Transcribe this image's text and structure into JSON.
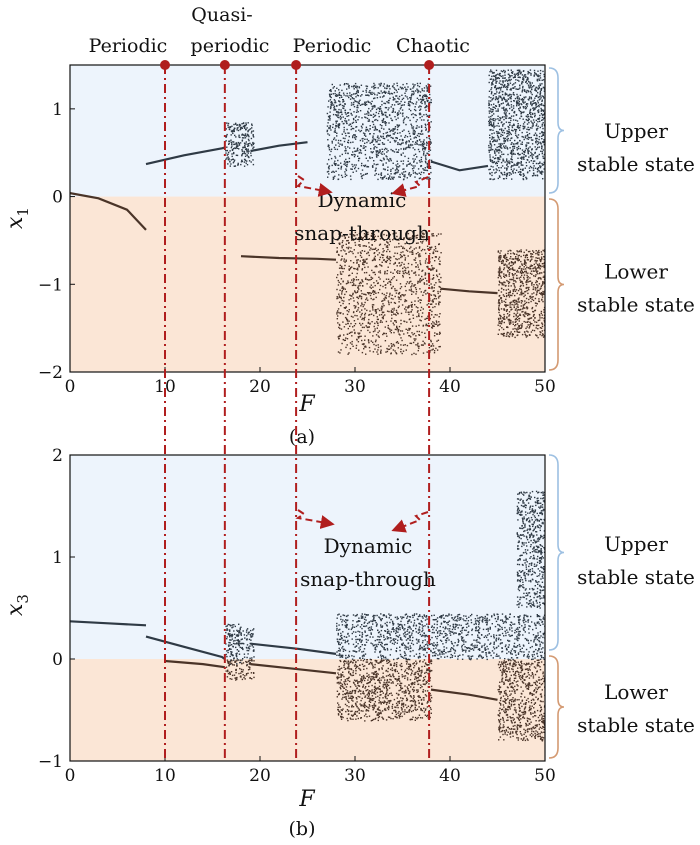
{
  "regime_labels": [
    {
      "text": "Periodic",
      "F": 10
    },
    {
      "text": "Quasi-",
      "F": 16.3
    },
    {
      "text": "periodic",
      "F": 16.3
    },
    {
      "text": "Periodic",
      "F": 23.8
    },
    {
      "text": "Chaotic",
      "F": 37.8
    }
  ],
  "colors": {
    "upper_band": "#edf4fc",
    "lower_band": "#fbe6d6",
    "upper_points": "#2f3a45",
    "lower_points": "#4a3428",
    "marker": "#b01e1e",
    "brace_upper": "#9dc0e2",
    "brace_lower": "#d49a72"
  },
  "chart_data": [
    {
      "type": "scatter",
      "panel_label": "(a)",
      "xlabel": "F",
      "ylabel": "x",
      "ylabel_sub": "1",
      "xlim": [
        0,
        50
      ],
      "ylim": [
        -2,
        1.5
      ],
      "xticks": [
        "0",
        "10",
        "20",
        "30",
        "40",
        "50"
      ],
      "yticks": [
        {
          "v": 1,
          "label": "1"
        },
        {
          "v": 0,
          "label": "0"
        },
        {
          "v": -1,
          "label": "−1"
        },
        {
          "v": -2,
          "label": "−2"
        }
      ],
      "markers_F": [
        10,
        16.3,
        23.8,
        37.8
      ],
      "bands": [
        {
          "name": "Upper stable state",
          "from": 0,
          "to": 1.5
        },
        {
          "name": "Lower stable state",
          "from": -2,
          "to": 0
        }
      ],
      "states": [
        {
          "line1": "Upper",
          "line2": "stable state",
          "y": 0.6
        },
        {
          "line1": "Lower",
          "line2": "stable state",
          "y": -1.0
        }
      ],
      "annotation": {
        "line1": "Dynamic",
        "line2": "snap-through",
        "F": 31,
        "y": -0.2
      },
      "branches": [
        {
          "state": "upper",
          "desc": "periodic branch rising",
          "x": [
            8.0,
            10.0,
            12.0,
            14.0,
            16.0,
            16.3
          ],
          "y": [
            0.37,
            0.42,
            0.47,
            0.51,
            0.55,
            0.56
          ]
        },
        {
          "state": "upper",
          "desc": "quasi-periodic cloud",
          "x": [
            16.3,
            19.3
          ],
          "y": [
            0.35,
            0.85
          ]
        },
        {
          "state": "upper",
          "desc": "periodic branch",
          "x": [
            19.0,
            22.0,
            25.0
          ],
          "y": [
            0.52,
            0.58,
            0.62
          ]
        },
        {
          "state": "upper",
          "desc": "chaotic band",
          "x": [
            27.0,
            38.0
          ],
          "y": [
            0.2,
            1.3
          ]
        },
        {
          "state": "upper",
          "desc": "period-doubling branch",
          "x": [
            38.0,
            41.0,
            44.0
          ],
          "y": [
            0.4,
            0.3,
            0.35
          ]
        },
        {
          "state": "upper",
          "desc": "chaotic band",
          "x": [
            44.0,
            50.0
          ],
          "y": [
            0.2,
            1.45
          ]
        },
        {
          "state": "lower",
          "desc": "initial branch",
          "x": [
            0,
            3,
            6,
            8
          ],
          "y": [
            0.04,
            -0.02,
            -0.15,
            -0.38
          ]
        },
        {
          "state": "lower",
          "desc": "periodic branch",
          "x": [
            18.0,
            22.0,
            26.0,
            28.0
          ],
          "y": [
            -0.68,
            -0.7,
            -0.71,
            -0.72
          ]
        },
        {
          "state": "lower",
          "desc": "chaotic band",
          "x": [
            28.0,
            39.0
          ],
          "y": [
            -1.8,
            -0.4
          ]
        },
        {
          "state": "lower",
          "desc": "period-doubling branch",
          "x": [
            39.0,
            42.0,
            45.0
          ],
          "y": [
            -1.05,
            -1.08,
            -1.1
          ]
        },
        {
          "state": "lower",
          "desc": "chaotic band",
          "x": [
            45.0,
            50.0
          ],
          "y": [
            -1.6,
            -0.6
          ]
        }
      ]
    },
    {
      "type": "scatter",
      "panel_label": "(b)",
      "xlabel": "F",
      "ylabel": "x",
      "ylabel_sub": "3",
      "xlim": [
        0,
        50
      ],
      "ylim": [
        -1,
        2
      ],
      "xticks": [
        "0",
        "10",
        "20",
        "30",
        "40",
        "50"
      ],
      "yticks": [
        {
          "v": 2,
          "label": "2"
        },
        {
          "v": 1,
          "label": "1"
        },
        {
          "v": 0,
          "label": "0"
        },
        {
          "v": -1,
          "label": "−1"
        }
      ],
      "markers_F": [
        10,
        16.3,
        23.8,
        37.8
      ],
      "bands": [
        {
          "name": "Upper stable state",
          "from": 0,
          "to": 2
        },
        {
          "name": "Lower stable state",
          "from": -1,
          "to": 0
        }
      ],
      "states": [
        {
          "line1": "Upper",
          "line2": "stable state",
          "y": 1.0
        },
        {
          "line1": "Lower",
          "line2": "stable state",
          "y": -0.45
        }
      ],
      "annotation": {
        "line1": "Dynamic",
        "line2": "snap-through",
        "F": 31,
        "y": 0.97
      },
      "branches": [
        {
          "state": "upper",
          "desc": "initial branch",
          "x": [
            0,
            4,
            8
          ],
          "y": [
            0.37,
            0.35,
            0.33
          ]
        },
        {
          "state": "upper",
          "desc": "periodic branch",
          "x": [
            8.0,
            12.0,
            16.0,
            16.3
          ],
          "y": [
            0.22,
            0.12,
            0.02,
            0.0
          ]
        },
        {
          "state": "upper",
          "desc": "quasi-periodic cloud",
          "x": [
            16.3,
            19.3
          ],
          "y": [
            -0.05,
            0.35
          ]
        },
        {
          "state": "upper",
          "desc": "periodic branch",
          "x": [
            19.0,
            24.0,
            28.0
          ],
          "y": [
            0.15,
            0.1,
            0.05
          ]
        },
        {
          "state": "upper",
          "desc": "chaotic band",
          "x": [
            28.0,
            50.0
          ],
          "y": [
            0.0,
            0.45
          ]
        },
        {
          "state": "upper",
          "desc": "scattered points",
          "x": [
            47.0,
            50.0
          ],
          "y": [
            0.5,
            1.65
          ]
        },
        {
          "state": "lower",
          "desc": "lower branch",
          "x": [
            10.0,
            14.0,
            16.3
          ],
          "y": [
            -0.02,
            -0.05,
            -0.08
          ]
        },
        {
          "state": "lower",
          "desc": "quasi-periodic cloud",
          "x": [
            16.3,
            19.3
          ],
          "y": [
            -0.2,
            0.0
          ]
        },
        {
          "state": "lower",
          "desc": "periodic branch",
          "x": [
            19.0,
            24.0,
            28.0
          ],
          "y": [
            -0.05,
            -0.1,
            -0.14
          ]
        },
        {
          "state": "lower",
          "desc": "chaotic band",
          "x": [
            28.0,
            38.0
          ],
          "y": [
            -0.6,
            0.0
          ]
        },
        {
          "state": "lower",
          "desc": "period-doubling branch",
          "x": [
            38.0,
            42.0,
            45.0
          ],
          "y": [
            -0.3,
            -0.35,
            -0.4
          ]
        },
        {
          "state": "lower",
          "desc": "chaotic band",
          "x": [
            45.0,
            50.0
          ],
          "y": [
            -0.8,
            0.0
          ]
        }
      ]
    }
  ]
}
